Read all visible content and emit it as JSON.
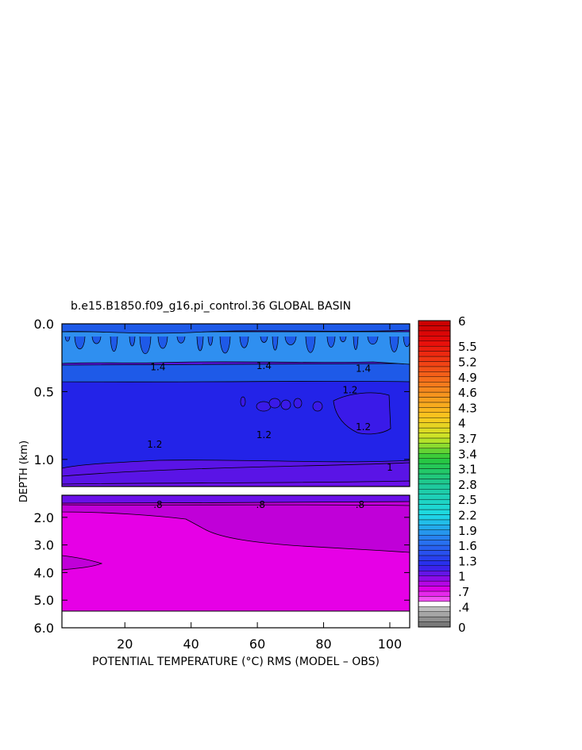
{
  "chart_data": {
    "type": "heatmap",
    "title": "b.e15.B1850.f09_g16.pi_control.36 GLOBAL BASIN",
    "xlabel": "POTENTIAL TEMPERATURE (°C) RMS (MODEL – OBS)",
    "ylabel": "DEPTH (km)",
    "xlim": [
      1,
      106
    ],
    "x_ticks": [
      "20",
      "40",
      "60",
      "80",
      "100"
    ],
    "x_tick_values": [
      20,
      40,
      60,
      80,
      100
    ],
    "upper_panel": {
      "ylim": [
        0.0,
        1.2
      ],
      "y_ticks": [
        "0.0",
        "0.5",
        "1.0"
      ],
      "y_tick_values": [
        0.0,
        0.5,
        1.0
      ]
    },
    "lower_panel": {
      "ylim": [
        1.2,
        6.0
      ],
      "y_ticks": [
        "2.0",
        "3.0",
        "4.0",
        "5.0",
        "6.0"
      ],
      "y_tick_values": [
        2.0,
        3.0,
        4.0,
        5.0,
        6.0
      ],
      "data_bottom_depth": 5.4
    },
    "contour_labels": [
      {
        "text": "1.4",
        "x": 30,
        "depth": 0.32
      },
      {
        "text": "1.4",
        "x": 62,
        "depth": 0.31
      },
      {
        "text": "1.4",
        "x": 92,
        "depth": 0.33
      },
      {
        "text": "1.2",
        "x": 88,
        "depth": 0.49
      },
      {
        "text": "1.2",
        "x": 92,
        "depth": 0.76
      },
      {
        "text": "1.2",
        "x": 29,
        "depth": 0.89
      },
      {
        "text": "1.2",
        "x": 62,
        "depth": 0.82
      },
      {
        "text": "1",
        "x": 100,
        "depth": 1.06
      },
      {
        "text": ".8",
        "x": 30,
        "depth": 1.55
      },
      {
        "text": ".8",
        "x": 61,
        "depth": 1.55
      },
      {
        "text": ".8",
        "x": 91,
        "depth": 1.55
      }
    ],
    "colorbar": {
      "range": [
        0,
        6
      ],
      "labels": [
        "6",
        "5.5",
        "5.2",
        "4.9",
        "4.6",
        "4.3",
        "4",
        "3.7",
        "3.4",
        "3.1",
        "2.8",
        "2.5",
        "2.2",
        "1.9",
        "1.6",
        "1.3",
        "1",
        ".7",
        ".4",
        "0"
      ],
      "label_values": [
        6,
        5.5,
        5.2,
        4.9,
        4.6,
        4.3,
        4,
        3.7,
        3.4,
        3.1,
        2.8,
        2.5,
        2.2,
        1.9,
        1.6,
        1.3,
        1,
        0.7,
        0.4,
        0
      ]
    },
    "colors": {
      "rms_0_6": "#e600e6",
      "rms_0_8": "#c000d8",
      "rms_1_0": "#6a10e8",
      "rms_1_2": "#2020e8",
      "rms_1_4": "#1e5ae8",
      "rms_1_6": "#2f8ff0",
      "no_data": "#ffffff"
    }
  }
}
